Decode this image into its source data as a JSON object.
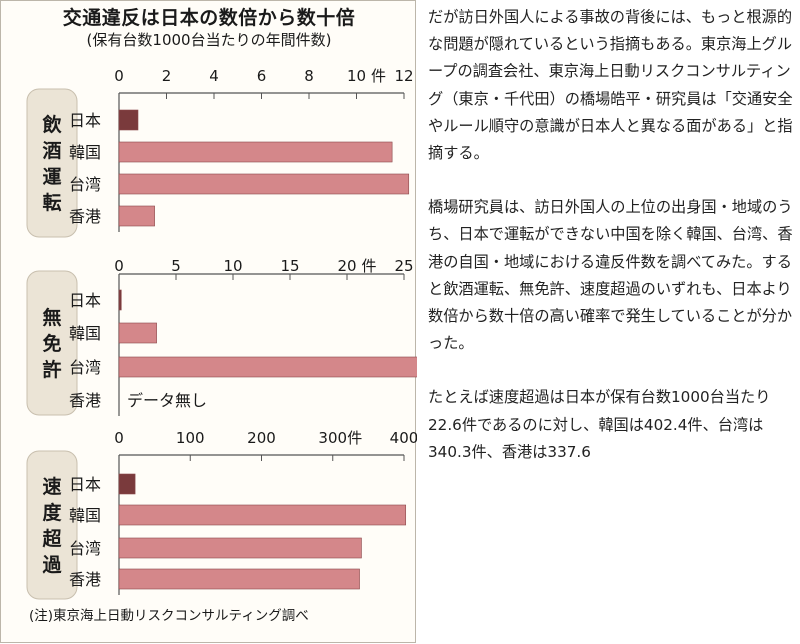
{
  "chart_data": [
    {
      "type": "bar",
      "orientation": "horizontal",
      "title": "交通違反は日本の数倍から数十倍",
      "subtitle": "(保有台数1000台当たりの年間件数)",
      "group_label": "飲酒運転",
      "unit": "件",
      "categories": [
        "日本",
        "韓国",
        "台湾",
        "香港"
      ],
      "values": [
        0.8,
        11.5,
        12.2,
        1.5
      ],
      "xlim": [
        0,
        12
      ],
      "ticks": [
        0,
        2,
        4,
        6,
        8,
        10,
        12
      ],
      "colors": [
        "#7a3a3c",
        "#d4878a",
        "#d4878a",
        "#d4878a"
      ]
    },
    {
      "type": "bar",
      "orientation": "horizontal",
      "group_label": "無免許",
      "unit": "件",
      "categories": [
        "日本",
        "韓国",
        "台湾",
        "香港"
      ],
      "values": [
        0.2,
        3.3,
        26.2,
        null
      ],
      "xlim": [
        0,
        25
      ],
      "ticks": [
        0,
        5,
        10,
        15,
        20,
        25
      ],
      "colors": [
        "#7a3a3c",
        "#d4878a",
        "#d4878a",
        "#d4878a"
      ],
      "no_data_note": "データ無し"
    },
    {
      "type": "bar",
      "orientation": "horizontal",
      "group_label": "速度超過",
      "unit": "件",
      "categories": [
        "日本",
        "韓国",
        "台湾",
        "香港"
      ],
      "values": [
        22.6,
        402.4,
        340.3,
        337.6
      ],
      "xlim": [
        0,
        400
      ],
      "ticks": [
        0,
        100,
        200,
        300,
        400
      ],
      "colors": [
        "#7a3a3c",
        "#d4878a",
        "#d4878a",
        "#d4878a"
      ]
    }
  ],
  "source": "(注)東京海上日動リスクコンサルティング調べ",
  "article": [
    "だが訪日外国人による事故の背後には、もっと根源的な問題が隠れているという指摘もある。東京海上グループの調査会社、東京海上日動リスクコンサルティング（東京・千代田）の橋場皓平・研究員は「交通安全やルール順守の意識が日本人と異なる面がある」と指摘する。",
    "橋場研究員は、訪日外国人の上位の出身国・地域のうち、日本で運転ができない中国を除く韓国、台湾、香港の自国・地域における違反件数を調べてみた。すると飲酒運転、無免許、速度超過のいずれも、日本より数倍から数十倍の高い確率で発生していることが分かった。",
    "たとえば速度超過は日本が保有台数1000台当たり22.6件であるのに対し、韓国は402.4件、台湾は340.3件、香港は337.6"
  ]
}
